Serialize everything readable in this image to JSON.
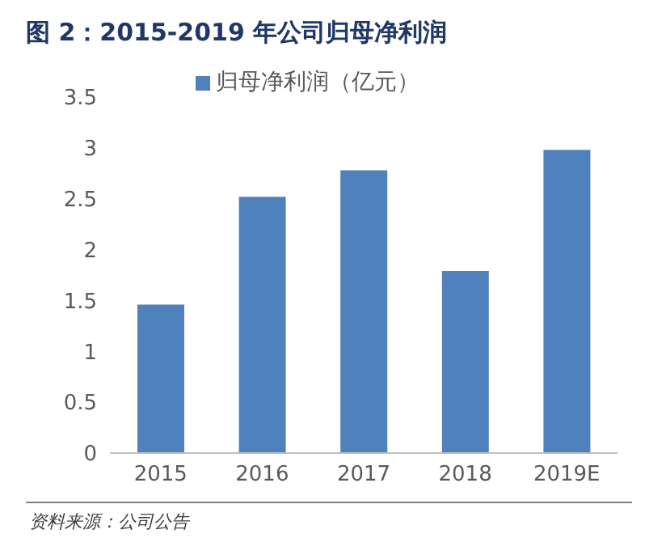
{
  "chart_data": {
    "type": "bar",
    "title": "图 2：2015-2019 年公司归母净利润",
    "categories": [
      "2015",
      "2016",
      "2017",
      "2018",
      "2019E"
    ],
    "series": [
      {
        "name": "归母净利润（亿元）",
        "color": "#4f81bd",
        "values": [
          1.46,
          2.52,
          2.78,
          1.79,
          2.98
        ]
      }
    ],
    "ylim": [
      0,
      3.5
    ],
    "yticks": [
      0,
      0.5,
      1,
      1.5,
      2,
      2.5,
      3,
      3.5
    ],
    "grid": false,
    "legend": "top",
    "annotations": [
      "资料来源：公司公告"
    ]
  }
}
